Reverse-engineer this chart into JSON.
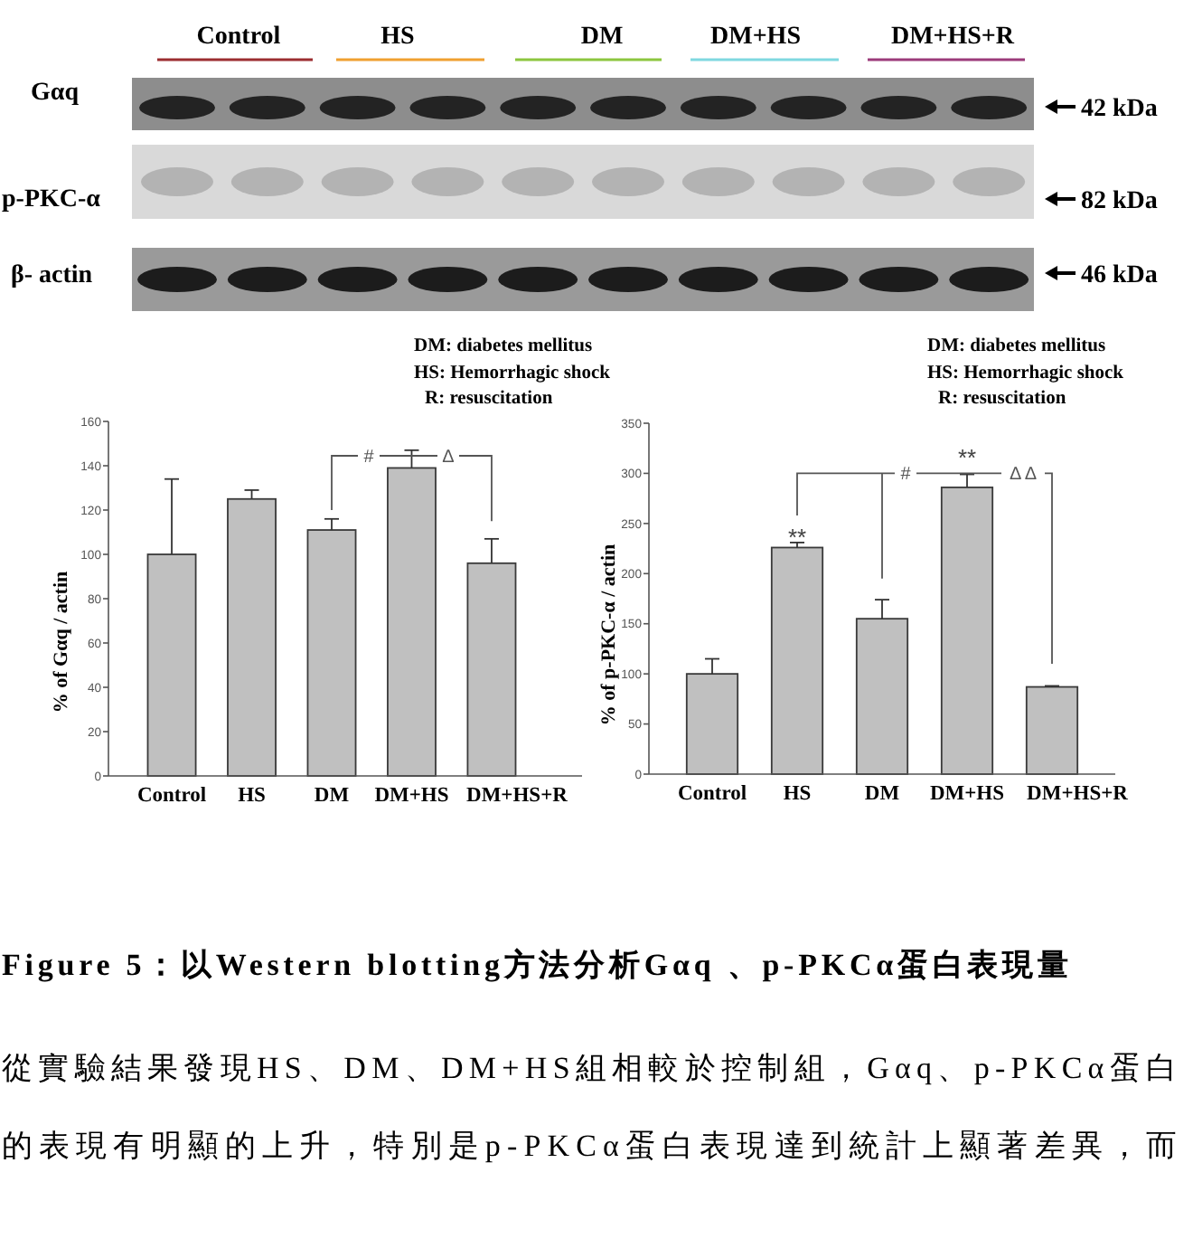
{
  "chart_data": [
    {
      "type": "other",
      "annotations": [
        "Control",
        "HS",
        "DM",
        "DM+HS",
        "DM+HS+R",
        "Gαq",
        "p-PKC-α",
        "β- actin",
        "42 kDa",
        "82 kDa",
        "46 kDa"
      ]
    },
    {
      "type": "bar",
      "ylabel": "% of Gαq / actin",
      "categories": [
        "Control",
        "HS",
        "DM",
        "DM+HS",
        "DM+HS+R"
      ],
      "values": [
        100,
        125,
        111,
        139,
        96
      ],
      "errors": [
        [
          100,
          134
        ],
        [
          125,
          129
        ],
        [
          111,
          116
        ],
        [
          139,
          147
        ],
        [
          96,
          107
        ]
      ],
      "color": "#c0c0c0",
      "ylim": [
        0,
        160
      ],
      "yticks": [
        0,
        20,
        40,
        60,
        80,
        100,
        120,
        140,
        160
      ],
      "annotations": [
        "DM: diabetes mellitus",
        "HS: Hemorrhagic shock",
        "R: resuscitation",
        "#",
        "Δ"
      ]
    },
    {
      "type": "bar",
      "ylabel": "% of p-PKC-α / actin",
      "categories": [
        "Control",
        "HS",
        "DM",
        "DM+HS",
        "DM+HS+R"
      ],
      "values": [
        100,
        226,
        155,
        286,
        87
      ],
      "errors": [
        [
          100,
          115
        ],
        [
          226,
          231
        ],
        [
          155,
          174
        ],
        [
          286,
          299
        ],
        [
          87,
          88
        ]
      ],
      "color": "#c0c0c0",
      "ylim": [
        0,
        350
      ],
      "yticks": [
        0,
        50,
        100,
        150,
        200,
        250,
        300,
        350
      ],
      "annotations": [
        "DM: diabetes mellitus",
        "HS: Hemorrhagic shock",
        "R: resuscitation",
        {
          "text": "**",
          "x": "HS",
          "y": 239
        },
        "**",
        "#",
        "Δ Δ"
      ]
    },
    {
      "type": "other",
      "title": "Figure 5：以Western blotting方法分析Gαq 、p-PKCα蛋白表現量",
      "annotations": [
        "從實驗結果發現HS、DM、DM+HS組相較於控制組，Gαq、p-PKCα蛋白",
        "的表現有明顯的上升，特別是p-PKCα蛋白表現達到統計上顯著差異，而"
      ]
    }
  ]
}
